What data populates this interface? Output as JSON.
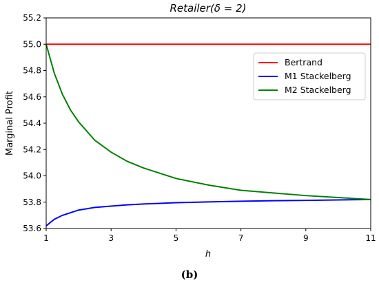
{
  "chart_data": {
    "type": "line",
    "title": "Retailer(δ = 2)",
    "xlabel": "h",
    "ylabel": "Marginal Profit",
    "xlim": [
      1,
      11
    ],
    "ylim": [
      53.6,
      55.2
    ],
    "xticks": [
      1,
      3,
      5,
      7,
      9,
      11
    ],
    "yticks": [
      "53.6",
      "53.8",
      "54.0",
      "54.2",
      "54.4",
      "54.6",
      "54.8",
      "55.0",
      "55.2"
    ],
    "legend_position": "upper-right",
    "grid": false,
    "series": [
      {
        "name": "Bertrand",
        "color": "#ff0000",
        "x": [
          1,
          11
        ],
        "y": [
          55.0,
          55.0
        ]
      },
      {
        "name": "M1 Stackelberg",
        "color": "#0000ff",
        "x": [
          1,
          1.25,
          1.5,
          1.75,
          2,
          2.5,
          3,
          3.5,
          4,
          4.5,
          5,
          6,
          7,
          8,
          9,
          10,
          11
        ],
        "y": [
          53.62,
          53.67,
          53.7,
          53.72,
          53.74,
          53.76,
          53.77,
          53.78,
          53.786,
          53.791,
          53.796,
          53.802,
          53.807,
          53.811,
          53.814,
          53.817,
          53.82
        ]
      },
      {
        "name": "M2 Stackelberg",
        "color": "#008000",
        "x": [
          1,
          1.25,
          1.5,
          1.75,
          2,
          2.5,
          3,
          3.5,
          4,
          4.5,
          5,
          6,
          7,
          8,
          9,
          10,
          11
        ],
        "y": [
          55.0,
          54.78,
          54.62,
          54.5,
          54.41,
          54.27,
          54.18,
          54.11,
          54.06,
          54.02,
          53.98,
          53.93,
          53.89,
          53.87,
          53.85,
          53.835,
          53.82
        ]
      }
    ]
  },
  "caption": "(b)"
}
